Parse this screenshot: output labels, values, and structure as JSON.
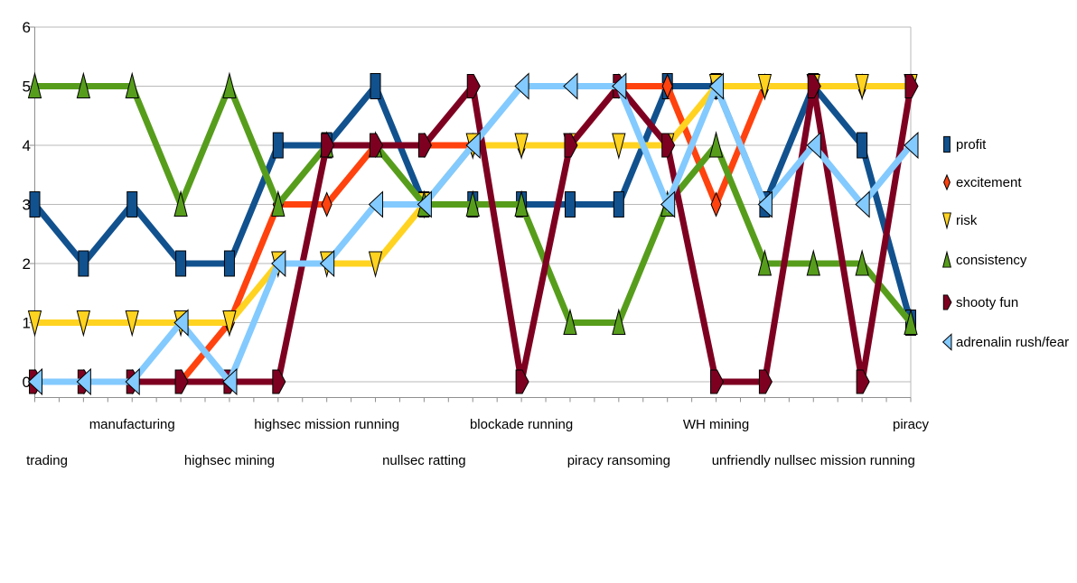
{
  "page": {
    "background": "#ffffff"
  },
  "chart_data": {
    "type": "line",
    "title": "",
    "xlabel": "",
    "ylabel": "",
    "ylim": [
      0,
      6
    ],
    "yticks": [
      0,
      1,
      2,
      3,
      4,
      5,
      6
    ],
    "grid": "horizontal",
    "legend_position": "right",
    "n_points": 19,
    "categories": [
      "trading",
      "",
      "manufacturing",
      "",
      "highsec mining",
      "",
      "highsec mission running",
      "",
      "nullsec ratting",
      "",
      "blockade running",
      "",
      "piracy ransoming",
      "",
      "WH mining",
      "",
      "unfriendly nullsec mission running",
      "",
      "piracy"
    ],
    "series": [
      {
        "name": "profit",
        "color": "#11518E",
        "marker": "rect",
        "values": [
          3,
          2,
          3,
          2,
          2,
          4,
          4,
          5,
          3,
          3,
          3,
          3,
          3,
          5,
          5,
          3,
          5,
          4,
          1
        ]
      },
      {
        "name": "excitement",
        "color": "#FF420E",
        "marker": "diamond",
        "values": [
          0,
          0,
          0,
          0,
          1,
          3,
          3,
          4,
          4,
          4,
          4,
          4,
          5,
          5,
          3,
          5,
          5,
          5,
          5
        ]
      },
      {
        "name": "risk",
        "color": "#FFD320",
        "marker": "triangle-down",
        "values": [
          1,
          1,
          1,
          1,
          1,
          2,
          2,
          2,
          3,
          4,
          4,
          4,
          4,
          4,
          5,
          5,
          5,
          5,
          5
        ]
      },
      {
        "name": "consistency",
        "color": "#579D1C",
        "marker": "triangle-up",
        "values": [
          5,
          5,
          5,
          3,
          5,
          3,
          4,
          4,
          3,
          3,
          3,
          1,
          1,
          3,
          4,
          2,
          2,
          2,
          1
        ]
      },
      {
        "name": "shooty fun",
        "color": "#7E0021",
        "marker": "arrow-right",
        "values": [
          0,
          0,
          0,
          0,
          0,
          0,
          4,
          4,
          4,
          5,
          0,
          4,
          5,
          4,
          0,
          0,
          5,
          0,
          5
        ]
      },
      {
        "name": "adrenalin rush/fear",
        "color": "#83CAFF",
        "marker": "triangle-left",
        "values": [
          0,
          0,
          0,
          1,
          0,
          2,
          2,
          3,
          3,
          4,
          5,
          5,
          5,
          3,
          5,
          3,
          4,
          3,
          4
        ]
      }
    ],
    "style": {
      "grid_color": "#b9b9b9",
      "axis_color": "#8f8f8f",
      "text_color": "#000000",
      "background": "#ffffff"
    }
  }
}
